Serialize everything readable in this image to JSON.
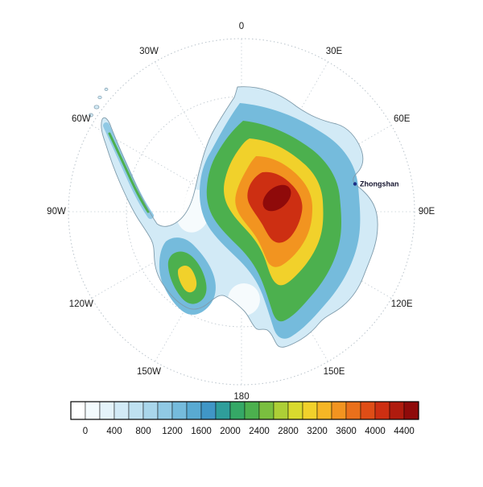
{
  "grid": {
    "meridian_labels": [
      {
        "label": "0",
        "angle": 0
      },
      {
        "label": "30E",
        "angle": 30
      },
      {
        "label": "60E",
        "angle": 60
      },
      {
        "label": "90E",
        "angle": 90
      },
      {
        "label": "120E",
        "angle": 120
      },
      {
        "label": "150E",
        "angle": 150
      },
      {
        "label": "180",
        "angle": 180
      },
      {
        "label": "150W",
        "angle": 210
      },
      {
        "label": "120W",
        "angle": 240
      },
      {
        "label": "90W",
        "angle": 270
      },
      {
        "label": "60W",
        "angle": 300
      },
      {
        "label": "30W",
        "angle": 330
      }
    ]
  },
  "station": {
    "name": "Zhongshan"
  },
  "colorbar": {
    "colors": [
      "#ffffff",
      "#f3fafd",
      "#e4f3fa",
      "#d2eaf6",
      "#bfe1f1",
      "#a9d6eb",
      "#90c9e4",
      "#75bbdc",
      "#59aad2",
      "#4096c6",
      "#2f9e9b",
      "#35a866",
      "#4cb04e",
      "#7abf3f",
      "#adcf36",
      "#d9da2e",
      "#f1d12b",
      "#f6b625",
      "#f29420",
      "#ea701b",
      "#df4d16",
      "#cd2f12",
      "#b01b0e",
      "#8f0a0a"
    ],
    "tick_labels": [
      "0",
      "400",
      "800",
      "1200",
      "1600",
      "2000",
      "2400",
      "2800",
      "3200",
      "3600",
      "4000",
      "4400"
    ]
  }
}
